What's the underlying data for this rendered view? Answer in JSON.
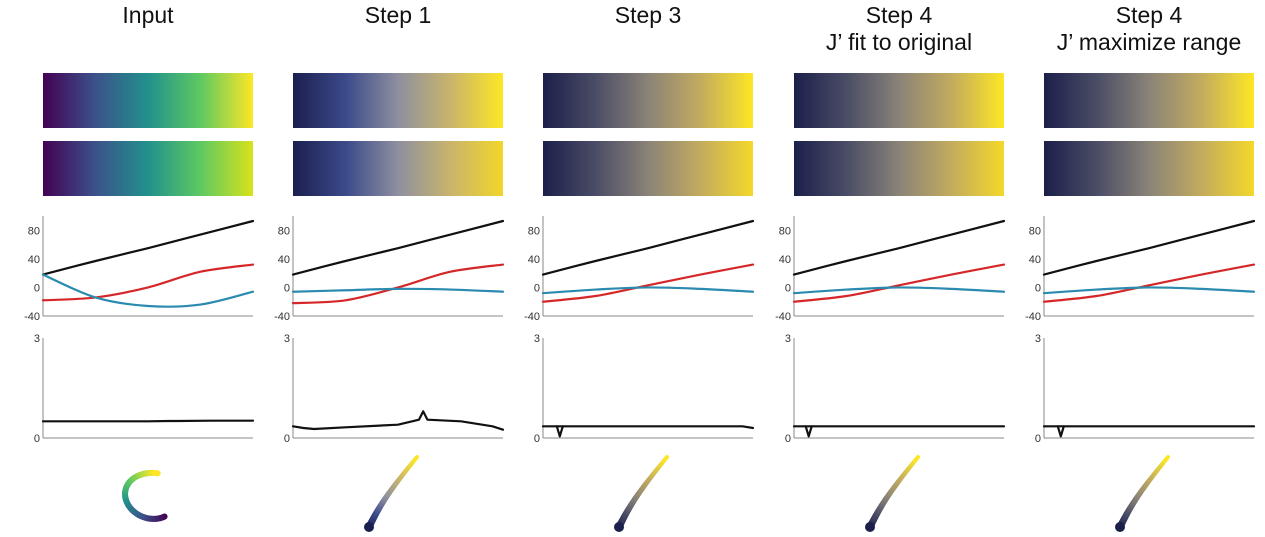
{
  "columns": [
    {
      "id": "input",
      "title": [
        "Input"
      ],
      "swatch_colors": [
        "#440154",
        "#3b528b",
        "#21918c",
        "#5ec962",
        "#fde725"
      ],
      "swatch2_colors": [
        "#440154",
        "#3b528b",
        "#21918c",
        "#5ec962",
        "#d8e21a"
      ]
    },
    {
      "id": "step1",
      "title": [
        "Step 1"
      ],
      "swatch_colors": [
        "#1b1f4f",
        "#3b4a8a",
        "#8e8fa0",
        "#c9b46b",
        "#fde725"
      ],
      "swatch2_colors": [
        "#1b1f4f",
        "#3b4a8a",
        "#8e8fa0",
        "#c9b46b",
        "#f2d62a"
      ]
    },
    {
      "id": "step3",
      "title": [
        "Step 3"
      ],
      "swatch_colors": [
        "#1c1f4a",
        "#4a4d66",
        "#8a8378",
        "#c3ab5e",
        "#fde725"
      ],
      "swatch2_colors": [
        "#1c1f4a",
        "#4a4d66",
        "#8a8378",
        "#c3ab5e",
        "#f4d82a"
      ]
    },
    {
      "id": "step4-fit",
      "title": [
        "Step 4",
        "J’ fit to original"
      ],
      "swatch_colors": [
        "#1c1f4a",
        "#4a4d66",
        "#8a8378",
        "#c3ab5e",
        "#fde725"
      ],
      "swatch2_colors": [
        "#1c1f4a",
        "#4a4d66",
        "#8a8378",
        "#c3ab5e",
        "#f4d82a"
      ]
    },
    {
      "id": "step4-max",
      "title": [
        "Step 4",
        "J’ maximize range"
      ],
      "swatch_colors": [
        "#1c1f4a",
        "#4a4d66",
        "#8a8378",
        "#c3ab5e",
        "#fde725"
      ],
      "swatch2_colors": [
        "#1c1f4a",
        "#4a4d66",
        "#8a8378",
        "#c3ab5e",
        "#f4d82a"
      ]
    }
  ],
  "chart_data": [
    {
      "type": "line",
      "panel": "component curves",
      "ylim": [
        -40,
        100
      ],
      "yticks": [
        "80",
        "40",
        "0",
        "-40"
      ],
      "x": [
        0,
        0.25,
        0.5,
        0.75,
        1
      ],
      "series_colors": {
        "J": "#111111",
        "a": "#d62728",
        "b": "#2a8ab0"
      },
      "per_column": {
        "input": {
          "J": [
            18,
            37,
            55,
            74,
            93
          ],
          "a": [
            -18,
            -14,
            0,
            22,
            32
          ],
          "b": [
            18,
            -14,
            -26,
            -24,
            -6
          ]
        },
        "step1": {
          "J": [
            18,
            37,
            55,
            74,
            93
          ],
          "a": [
            -22,
            -18,
            0,
            22,
            32
          ],
          "b": [
            -6,
            -4,
            -2,
            -3,
            -6
          ]
        },
        "step3": {
          "J": [
            18,
            37,
            55,
            74,
            93
          ],
          "a": [
            -20,
            -12,
            3,
            18,
            32
          ],
          "b": [
            -8,
            -3,
            0,
            -2,
            -6
          ]
        },
        "step4-fit": {
          "J": [
            18,
            37,
            55,
            74,
            93
          ],
          "a": [
            -20,
            -12,
            3,
            18,
            32
          ],
          "b": [
            -8,
            -3,
            0,
            -2,
            -6
          ]
        },
        "step4-max": {
          "J": [
            18,
            37,
            55,
            74,
            93
          ],
          "a": [
            -20,
            -12,
            3,
            18,
            32
          ],
          "b": [
            -8,
            -3,
            0,
            -2,
            -6
          ]
        }
      }
    },
    {
      "type": "line",
      "panel": "perceptual derivative",
      "ylim": [
        0,
        3
      ],
      "yticks": [
        "3",
        "0"
      ],
      "x": [
        0,
        0.05,
        0.1,
        0.25,
        0.5,
        0.6,
        0.62,
        0.64,
        0.8,
        0.95,
        1
      ],
      "per_column": {
        "input": [
          0.5,
          0.5,
          0.5,
          0.5,
          0.5,
          0.51,
          0.51,
          0.51,
          0.52,
          0.52,
          0.52
        ],
        "step1": [
          0.35,
          0.3,
          0.27,
          0.32,
          0.4,
          0.55,
          0.8,
          0.55,
          0.5,
          0.35,
          0.25
        ],
        "step3": [
          0.35,
          0.35,
          0.35,
          0.35,
          0.35,
          0.35,
          0.35,
          0.35,
          0.35,
          0.35,
          0.3
        ],
        "step4-fit": [
          0.35,
          0.35,
          0.35,
          0.35,
          0.35,
          0.35,
          0.35,
          0.35,
          0.35,
          0.35,
          0.35
        ],
        "step4-max": [
          0.35,
          0.35,
          0.35,
          0.35,
          0.35,
          0.35,
          0.35,
          0.35,
          0.35,
          0.35,
          0.35
        ]
      },
      "dips": {
        "input": null,
        "step1": null,
        "step3": {
          "x": 0.08,
          "y": 0.05
        },
        "step4-fit": {
          "x": 0.07,
          "y": 0.05
        },
        "step4-max": {
          "x": 0.08,
          "y": 0.05
        }
      }
    }
  ],
  "orbit_shapes": {
    "input": "hook",
    "step1": "arc",
    "step3": "arc",
    "step4-fit": "arc",
    "step4-max": "arc"
  }
}
